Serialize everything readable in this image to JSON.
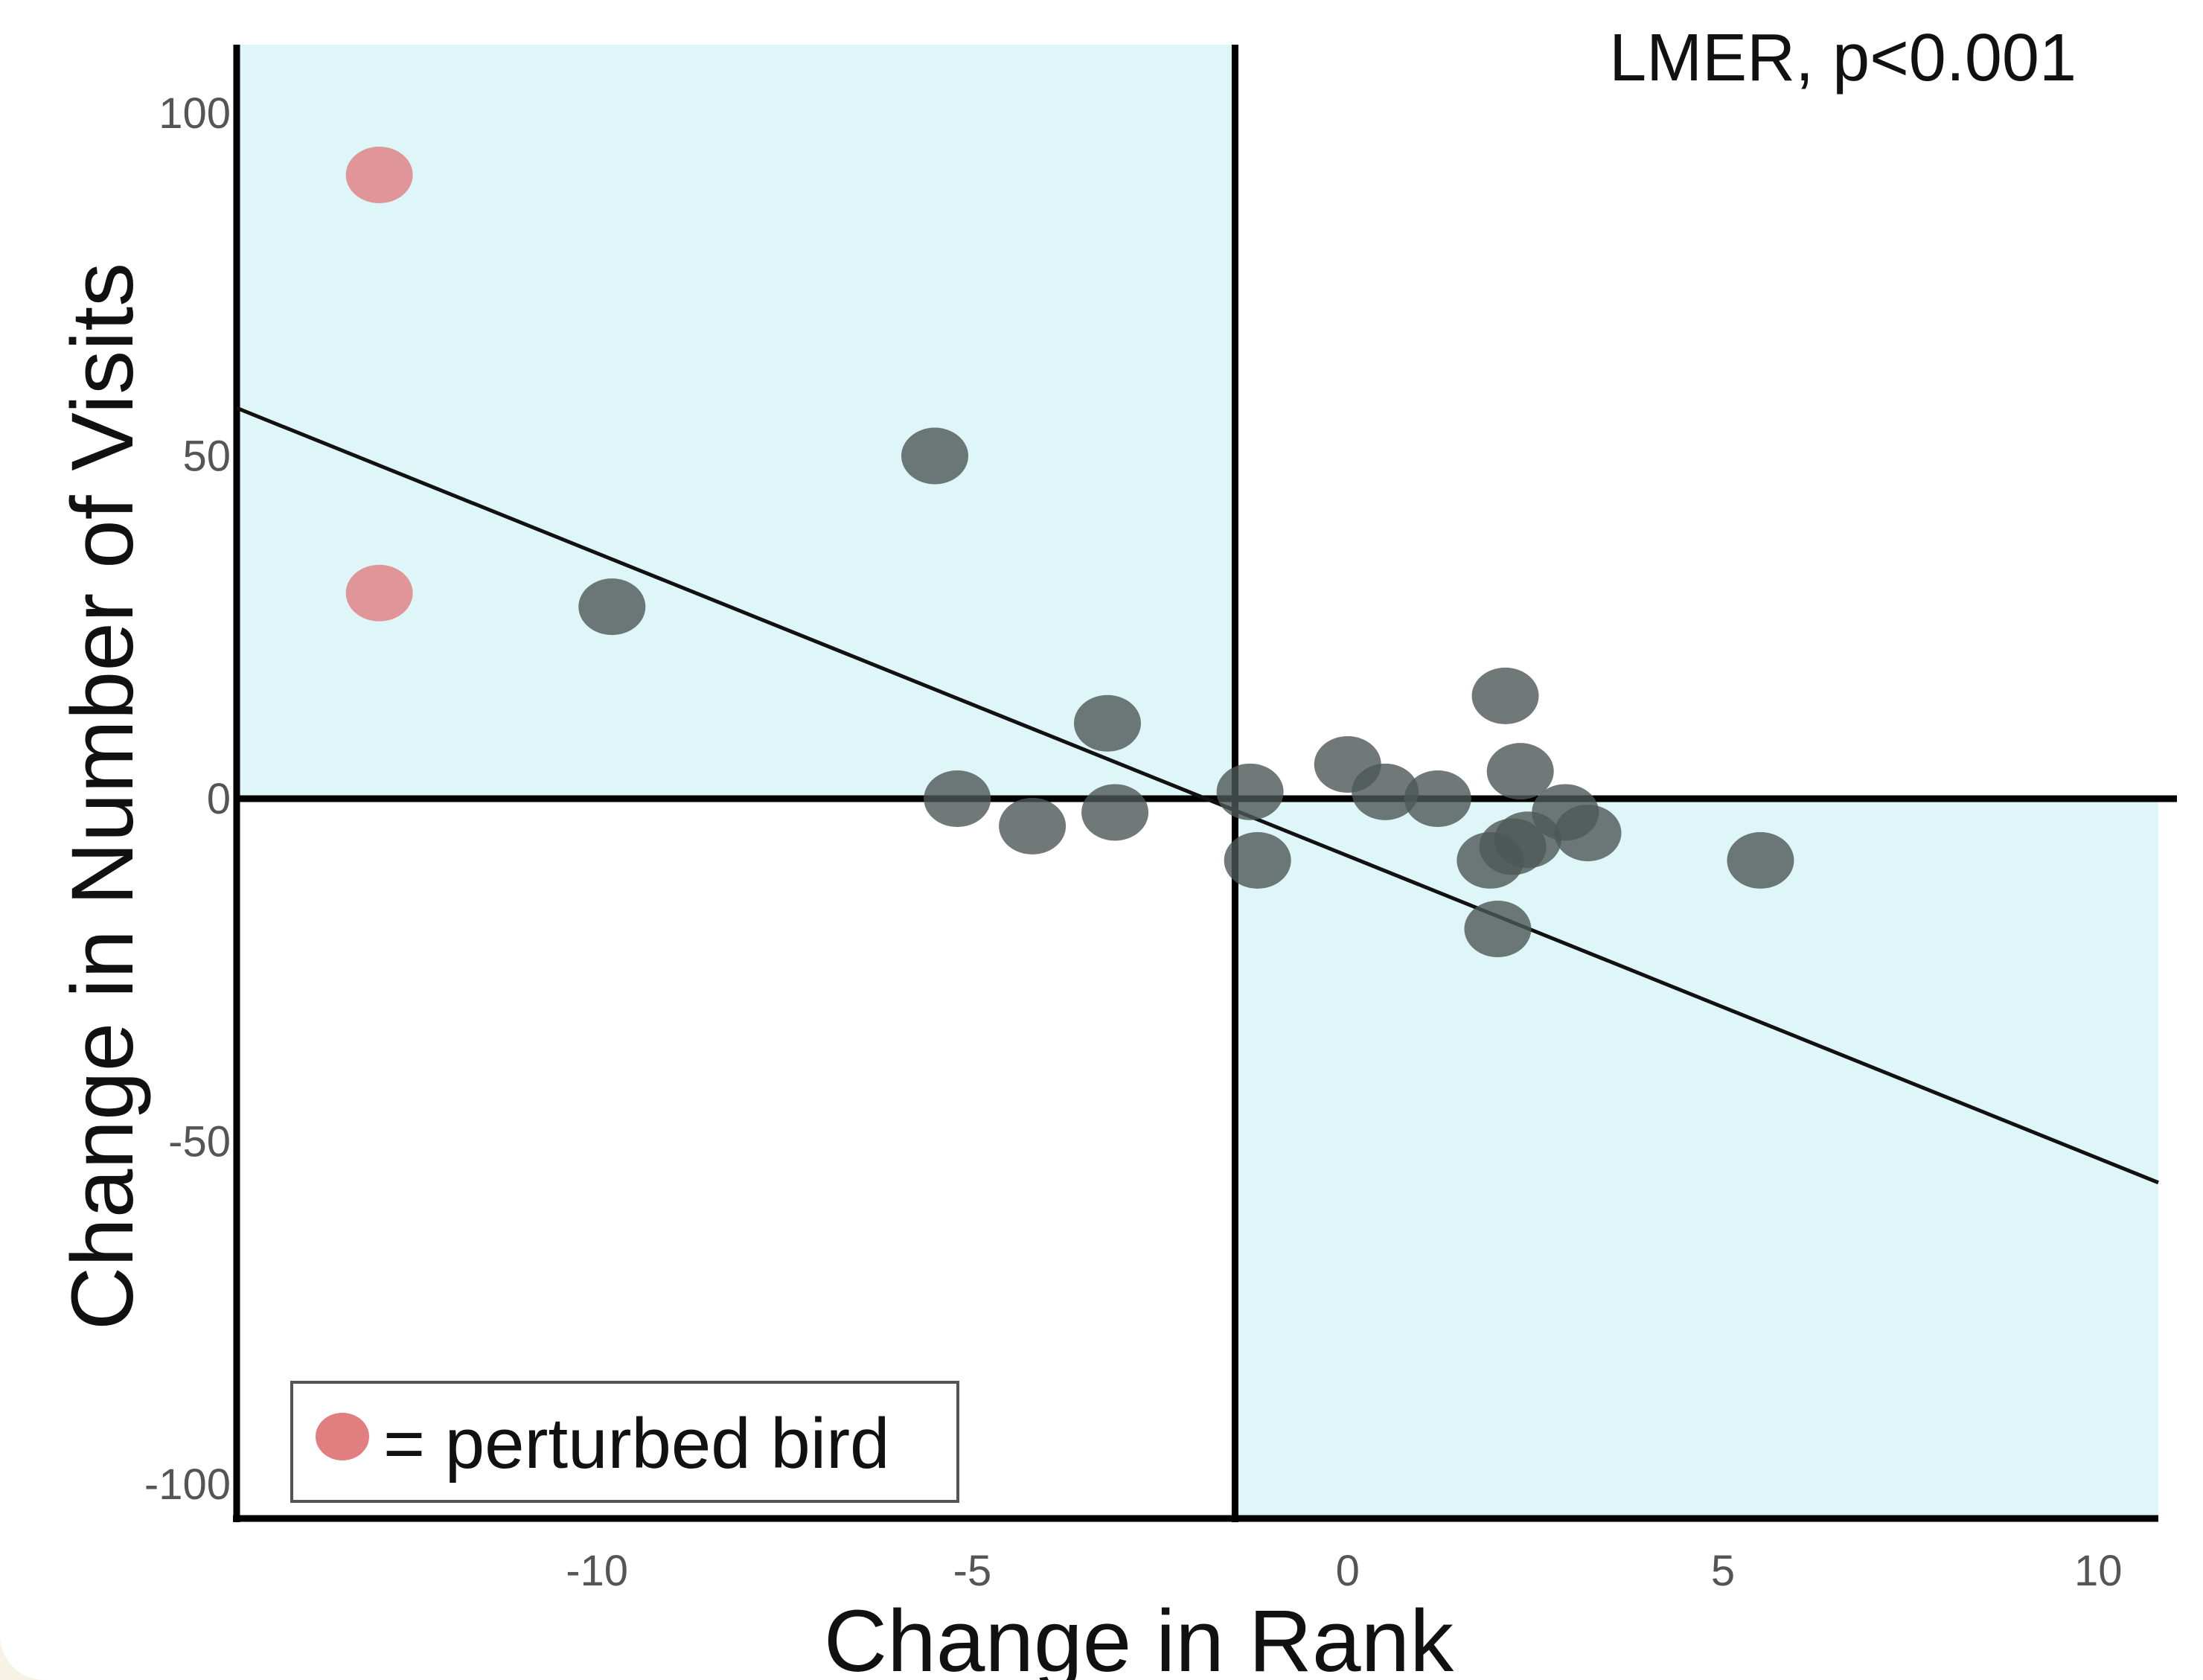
{
  "chart_data": {
    "type": "scatter",
    "title": "",
    "annotation": "LMER, p<0.001",
    "xlabel": "Change in Rank",
    "ylabel": "Change in Number of Visits",
    "xlim": [
      -14.8,
      10.8
    ],
    "ylim": [
      -105,
      110
    ],
    "x_ticks": [
      {
        "value": -10,
        "label": "-10"
      },
      {
        "value": -5,
        "label": "-5"
      },
      {
        "value": 0,
        "label": "0"
      },
      {
        "value": 5,
        "label": "5"
      },
      {
        "value": 10,
        "label": "10"
      }
    ],
    "y_ticks": [
      {
        "value": 100,
        "label": "100"
      },
      {
        "value": 50,
        "label": "50"
      },
      {
        "value": 0,
        "label": "0"
      },
      {
        "value": -50,
        "label": "-50"
      },
      {
        "value": -100,
        "label": "-100"
      }
    ],
    "divider_x": -1.5,
    "divider_y": 0,
    "shaded_quadrants": [
      "upper-left",
      "lower-right"
    ],
    "grid": false,
    "legend": {
      "position": "bottom-left",
      "entries": [
        {
          "label": "= perturbed bird",
          "color": "#e07e80"
        }
      ]
    },
    "series": [
      {
        "color": "#e07e80",
        "x": [
          -12.9,
          -12.9
        ],
        "y": [
          91,
          30
        ]
      },
      {
        "color": "#4d5756",
        "x": [
          -9.8,
          -5.5,
          -5.2,
          -4.2,
          -3.2,
          -3.1,
          -1.3,
          -1.2,
          0,
          0.5,
          1.2,
          1.9,
          2,
          2.1,
          2.2,
          2.3,
          2.4,
          2.9,
          3.2,
          5.5
        ],
        "y": [
          28,
          50,
          0,
          -4,
          11,
          -2,
          1,
          -9,
          5,
          1,
          0,
          -9,
          -19,
          15,
          -7,
          4,
          -6,
          -2,
          -5,
          -9
        ]
      }
    ],
    "regression": {
      "x": [
        -14.8,
        10.8
      ],
      "y": [
        57,
        -56
      ]
    },
    "colors": {
      "shade": "#def6f7",
      "axis": "#000000",
      "tick_label": "#555555",
      "page_background": "#f8f2e6"
    }
  }
}
